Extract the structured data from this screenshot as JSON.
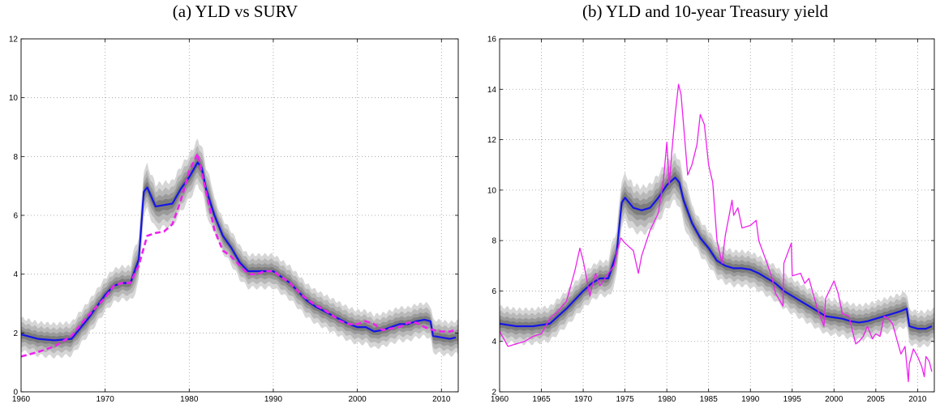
{
  "chart_data": [
    {
      "type": "line",
      "title": "(a) YLD vs SURV",
      "xlabel": "",
      "ylabel": "",
      "xlim": [
        1960,
        2012
      ],
      "ylim": [
        0,
        12
      ],
      "xticks": [
        1960,
        1970,
        1980,
        1990,
        2000,
        2010
      ],
      "yticks": [
        0,
        2,
        4,
        6,
        8,
        10,
        12
      ],
      "grid": true,
      "bands": true,
      "series": [
        {
          "style": "solid",
          "color": "#1515e8",
          "x": [
            1960,
            1962,
            1964,
            1966,
            1968,
            1970,
            1971,
            1972,
            1973,
            1974,
            1974.6,
            1975,
            1976,
            1977,
            1978,
            1979,
            1980,
            1981,
            1981.5,
            1982,
            1983,
            1984,
            1985,
            1986,
            1987,
            1988,
            1989,
            1990,
            1991,
            1992,
            1993,
            1994,
            1995,
            1996,
            1997,
            1998,
            1999,
            2000,
            2001,
            2002,
            2003,
            2004,
            2005,
            2006,
            2007,
            2008,
            2008.7,
            2009,
            2010,
            2011,
            2011.7
          ],
          "y": [
            1.95,
            1.8,
            1.75,
            1.8,
            2.5,
            3.3,
            3.6,
            3.7,
            3.7,
            4.5,
            6.8,
            6.95,
            6.3,
            6.35,
            6.4,
            6.9,
            7.3,
            7.8,
            7.6,
            6.9,
            6.0,
            5.3,
            4.9,
            4.4,
            4.1,
            4.1,
            4.1,
            4.1,
            3.9,
            3.7,
            3.4,
            3.1,
            2.9,
            2.75,
            2.6,
            2.45,
            2.3,
            2.2,
            2.2,
            2.05,
            2.1,
            2.2,
            2.3,
            2.3,
            2.4,
            2.45,
            2.4,
            1.9,
            1.85,
            1.8,
            1.85
          ]
        },
        {
          "style": "dashed",
          "color": "#ee22ee",
          "x": [
            1960,
            1962,
            1964,
            1966,
            1968,
            1970,
            1971,
            1972,
            1973,
            1974,
            1975,
            1976,
            1977,
            1978,
            1979,
            1980,
            1981,
            1982,
            1983,
            1984,
            1985,
            1986,
            1987,
            1988,
            1989,
            1990,
            1991,
            1992,
            1993,
            1994,
            1995,
            1996,
            1997,
            1998,
            1999,
            2000,
            2001,
            2002,
            2003,
            2004,
            2005,
            2006,
            2007,
            2008,
            2009,
            2010,
            2011,
            2011.7
          ],
          "y": [
            1.2,
            1.35,
            1.55,
            1.9,
            2.6,
            3.2,
            3.6,
            3.7,
            3.7,
            4.3,
            5.3,
            5.4,
            5.45,
            5.7,
            6.5,
            7.5,
            8.1,
            6.8,
            5.5,
            4.8,
            4.6,
            4.3,
            4.0,
            4.0,
            4.1,
            4.1,
            3.9,
            3.7,
            3.4,
            3.15,
            2.95,
            2.8,
            2.6,
            2.4,
            2.3,
            2.3,
            2.4,
            2.3,
            2.1,
            2.15,
            2.2,
            2.35,
            2.35,
            2.2,
            2.1,
            2.05,
            2.05,
            2.1
          ]
        }
      ]
    },
    {
      "type": "line",
      "title": "(b) YLD and 10-year Treasury yield",
      "xlabel": "",
      "ylabel": "",
      "xlim": [
        1960,
        2012
      ],
      "ylim": [
        2,
        16
      ],
      "xticks": [
        1960,
        1965,
        1970,
        1975,
        1980,
        1985,
        1990,
        1995,
        2000,
        2005,
        2010
      ],
      "yticks": [
        2,
        4,
        6,
        8,
        10,
        12,
        14,
        16
      ],
      "grid": true,
      "bands": true,
      "series": [
        {
          "style": "solid",
          "color": "#1515e8",
          "x": [
            1960,
            1962,
            1964,
            1966,
            1968,
            1970,
            1971,
            1972,
            1973,
            1974,
            1974.6,
            1975,
            1976,
            1977,
            1978,
            1979,
            1980,
            1981,
            1981.5,
            1982,
            1983,
            1984,
            1985,
            1986,
            1987,
            1988,
            1989,
            1990,
            1991,
            1992,
            1993,
            1994,
            1995,
            1996,
            1997,
            1998,
            1999,
            2000,
            2001,
            2002,
            2003,
            2004,
            2005,
            2006,
            2007,
            2008,
            2008.7,
            2009,
            2010,
            2011,
            2011.7
          ],
          "y": [
            4.7,
            4.6,
            4.6,
            4.7,
            5.3,
            6.0,
            6.3,
            6.5,
            6.5,
            7.5,
            9.5,
            9.7,
            9.3,
            9.2,
            9.3,
            9.7,
            10.2,
            10.5,
            10.3,
            9.6,
            8.7,
            8.1,
            7.7,
            7.2,
            7.0,
            6.9,
            6.9,
            6.85,
            6.7,
            6.5,
            6.3,
            6.0,
            5.8,
            5.6,
            5.4,
            5.2,
            5.0,
            4.95,
            4.9,
            4.8,
            4.75,
            4.8,
            4.9,
            5.0,
            5.1,
            5.2,
            5.3,
            4.6,
            4.5,
            4.5,
            4.6
          ]
        },
        {
          "style": "solid",
          "color": "#ee22ee",
          "x": [
            1960,
            1961,
            1962,
            1963,
            1964,
            1965,
            1966,
            1967,
            1968,
            1969,
            1969.6,
            1970,
            1970.8,
            1971,
            1971.5,
            1972,
            1973,
            1973.7,
            1974,
            1974.5,
            1975,
            1976,
            1976.6,
            1977,
            1978,
            1979,
            1979.6,
            1980,
            1980.3,
            1980.6,
            1981,
            1981.4,
            1981.7,
            1982,
            1982.5,
            1983,
            1983.6,
            1984,
            1984.5,
            1985,
            1985.5,
            1986,
            1986.6,
            1987,
            1987.8,
            1988,
            1988.5,
            1989,
            1990,
            1990.7,
            1991,
            1992,
            1992.6,
            1993,
            1993.9,
            1994,
            1994.9,
            1995,
            1996,
            1996.5,
            1997,
            1998,
            1998.8,
            1999,
            2000,
            2000.5,
            2001,
            2001.8,
            2002,
            2002.6,
            2003,
            2003.5,
            2004,
            2004.6,
            2005,
            2005.5,
            2006,
            2006.5,
            2007,
            2007.5,
            2008,
            2008.5,
            2008.9,
            2009,
            2009.5,
            2010,
            2010.5,
            2010.8,
            2011,
            2011.4,
            2011.7
          ],
          "y": [
            4.4,
            3.8,
            3.9,
            4.0,
            4.2,
            4.3,
            4.9,
            5.2,
            5.6,
            6.8,
            7.7,
            7.2,
            5.8,
            6.1,
            6.7,
            6.2,
            6.7,
            7.0,
            7.5,
            8.1,
            7.9,
            7.6,
            6.7,
            7.4,
            8.4,
            9.1,
            10.4,
            11.9,
            10.2,
            11.5,
            13.0,
            14.2,
            13.8,
            12.6,
            10.6,
            11.0,
            11.8,
            13.0,
            12.6,
            11.0,
            10.3,
            8.0,
            7.1,
            8.2,
            9.6,
            9.0,
            9.3,
            8.5,
            8.6,
            8.8,
            8.0,
            7.1,
            6.5,
            5.9,
            5.4,
            7.1,
            7.9,
            6.6,
            6.7,
            6.3,
            6.5,
            5.3,
            4.6,
            5.7,
            6.4,
            5.9,
            5.1,
            5.0,
            4.7,
            3.9,
            4.0,
            4.2,
            4.6,
            4.1,
            4.3,
            4.2,
            5.0,
            4.9,
            4.7,
            4.1,
            3.5,
            3.8,
            2.4,
            3.1,
            3.7,
            3.4,
            3.0,
            2.6,
            3.4,
            3.2,
            2.8
          ]
        }
      ]
    }
  ]
}
